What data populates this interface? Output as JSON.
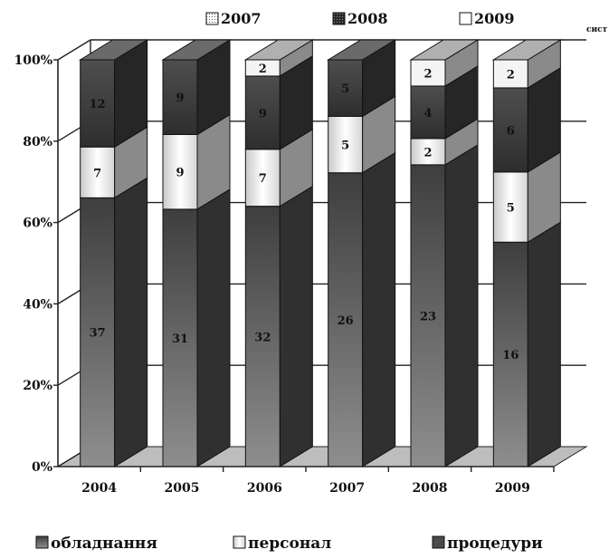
{
  "chart_data": {
    "type": "bar",
    "stacked": true,
    "three_d": true,
    "y_format": "percent",
    "ylim": [
      0,
      100
    ],
    "y_ticks": [
      "0%",
      "20%",
      "40%",
      "60%",
      "80%",
      "100%"
    ],
    "categories": [
      "2004",
      "2005",
      "2006",
      "2007",
      "2008",
      "2009"
    ],
    "series": [
      {
        "name": "обладнання",
        "values": [
          37,
          31,
          32,
          26,
          23,
          16
        ],
        "color": "#6e6e6e"
      },
      {
        "name": "персонал",
        "values": [
          7,
          9,
          7,
          5,
          2,
          5
        ],
        "color": "#f2f2f2"
      },
      {
        "name": "процедури",
        "values": [
          12,
          9,
          9,
          5,
          4,
          6
        ],
        "color": "#4a4a4a"
      },
      {
        "name": "",
        "values": [
          0,
          0,
          2,
          0,
          2,
          2
        ],
        "color": "#f5f5f5"
      }
    ],
    "top_legend": [
      "2007",
      "2008",
      "2009"
    ],
    "corner_text": "сист",
    "grid": true,
    "legend_position": "bottom"
  }
}
